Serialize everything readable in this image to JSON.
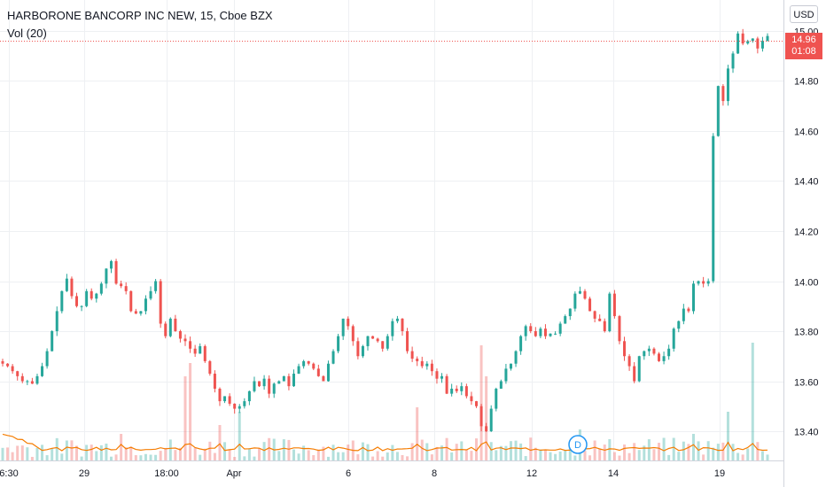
{
  "header": {
    "title": "HARBORONE BANCORP INC NEW, 15, Cboe BZX",
    "volume_label": "Vol (20)"
  },
  "currency_button": "USD",
  "last_price": {
    "value": "14.96",
    "countdown": "01:08",
    "color": "#ef5350"
  },
  "colors": {
    "up": "#26a69a",
    "down": "#ef5350",
    "volume_ma": "#f57c00",
    "grid": "#eef0f3",
    "axis_text": "#131722"
  },
  "event_marker": {
    "label": "D",
    "color": "#2196f3"
  },
  "chart_data": {
    "type": "candlestick",
    "ylim": [
      13.3,
      15.1
    ],
    "y_ticks": [
      "15.00",
      "14.80",
      "14.60",
      "14.40",
      "14.20",
      "14.00",
      "13.80",
      "13.60",
      "13.40"
    ],
    "x_ticks": [
      "6:30",
      "29",
      "18:00",
      "Apr",
      "6",
      "8",
      "12",
      "14",
      "19"
    ],
    "last_price_line": 14.96,
    "price_path": [
      13.67,
      13.66,
      13.64,
      13.62,
      13.6,
      13.6,
      13.59,
      13.62,
      13.66,
      13.72,
      13.8,
      13.88,
      13.96,
      14.01,
      13.94,
      13.9,
      13.9,
      13.96,
      13.93,
      13.95,
      13.99,
      14.05,
      14.08,
      13.99,
      13.98,
      13.96,
      13.88,
      13.87,
      13.88,
      13.93,
      13.96,
      14.0,
      13.83,
      13.78,
      13.85,
      13.8,
      13.77,
      13.76,
      13.73,
      13.71,
      13.74,
      13.68,
      13.63,
      13.57,
      13.52,
      13.54,
      13.51,
      13.49,
      13.5,
      13.52,
      13.56,
      13.6,
      13.58,
      13.61,
      13.55,
      13.59,
      13.6,
      13.62,
      13.58,
      13.63,
      13.66,
      13.68,
      13.67,
      13.65,
      13.62,
      13.6,
      13.67,
      13.72,
      13.78,
      13.85,
      13.82,
      13.76,
      13.7,
      13.74,
      13.78,
      13.77,
      13.76,
      13.73,
      13.78,
      13.84,
      13.85,
      13.8,
      13.72,
      13.69,
      13.68,
      13.66,
      13.67,
      13.64,
      13.61,
      13.62,
      13.55,
      13.57,
      13.56,
      13.58,
      13.54,
      13.52,
      13.5,
      13.42,
      13.4,
      13.49,
      13.57,
      13.6,
      13.65,
      13.67,
      13.72,
      13.78,
      13.82,
      13.8,
      13.78,
      13.81,
      13.78,
      13.79,
      13.79,
      13.83,
      13.86,
      13.89,
      13.95,
      13.96,
      13.93,
      13.88,
      13.85,
      13.84,
      13.8,
      13.95,
      13.86,
      13.76,
      13.7,
      13.66,
      13.6,
      13.7,
      13.72,
      13.73,
      13.71,
      13.68,
      13.7,
      13.73,
      13.81,
      13.84,
      13.89,
      13.88,
      13.99,
      14.0,
      13.99,
      14.0,
      14.58,
      14.78,
      14.72,
      14.85,
      14.91,
      14.99,
      14.95,
      14.96,
      14.97,
      14.93,
      14.96,
      14.98
    ],
    "volume_ma_level": "low"
  }
}
